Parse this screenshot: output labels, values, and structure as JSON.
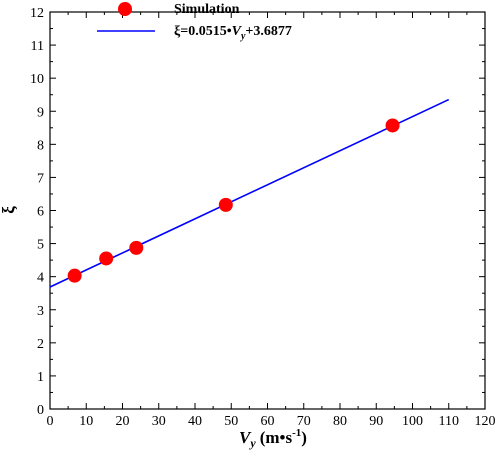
{
  "chart_data": {
    "type": "scatter",
    "xlabel_symbol": "V",
    "xlabel_sub": "y",
    "xlabel_unit": "(m•s",
    "xlabel_sup": "-1",
    "xlabel_close": ")",
    "ylabel": "ξ",
    "xlim": [
      0,
      120
    ],
    "ylim": [
      0,
      12
    ],
    "xticks": [
      "0",
      "10",
      "20",
      "30",
      "40",
      "50",
      "60",
      "70",
      "80",
      "90",
      "100",
      "110",
      "120"
    ],
    "yticks": [
      "0",
      "1",
      "2",
      "3",
      "4",
      "5",
      "6",
      "7",
      "8",
      "9",
      "10",
      "11",
      "12"
    ],
    "grid": false,
    "legend_position": "top-left",
    "series": [
      {
        "name": "Simulation",
        "kind": "scatter",
        "color": "#ff0000",
        "points": [
          {
            "x": 6.8,
            "y": 4.03
          },
          {
            "x": 15.5,
            "y": 4.55
          },
          {
            "x": 23.8,
            "y": 4.87
          },
          {
            "x": 48.5,
            "y": 6.17
          },
          {
            "x": 94.5,
            "y": 8.57
          }
        ]
      },
      {
        "legend_prefix": "ξ=0.0515•",
        "legend_var": "V",
        "legend_sub": "y",
        "legend_suffix": "+3.6877",
        "kind": "line",
        "color": "#0000ff",
        "slope": 0.0515,
        "intercept": 3.6877,
        "x_range": [
          0,
          110
        ]
      }
    ]
  }
}
